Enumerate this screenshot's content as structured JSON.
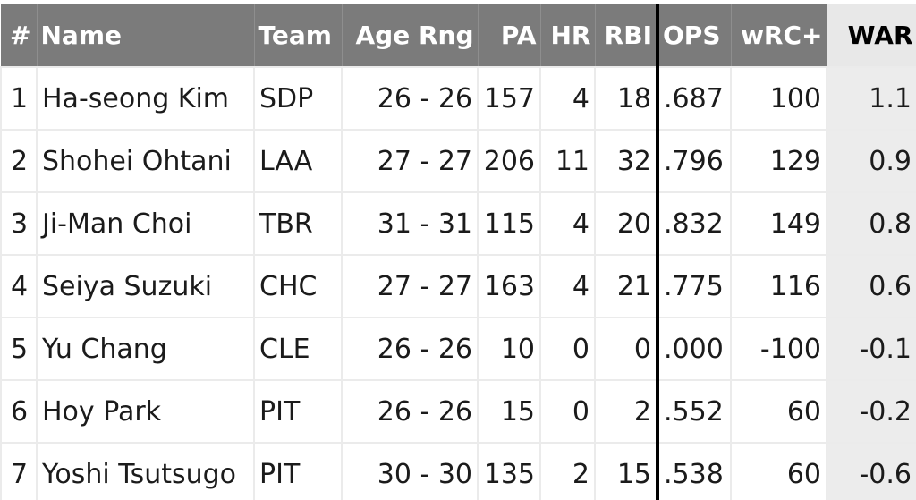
{
  "headers": {
    "num": "#",
    "name": "Name",
    "team": "Team",
    "age": "Age Rng",
    "pa": "PA",
    "hr": "HR",
    "rbi": "RBI",
    "ops": "OPS",
    "wrc": "wRC+",
    "war": "WAR"
  },
  "rows": [
    {
      "num": "1",
      "name": "Ha-seong Kim",
      "team": "SDP",
      "age": "26 - 26",
      "pa": "157",
      "hr": "4",
      "rbi": "18",
      "ops": ".687",
      "wrc": "100",
      "war": "1.1"
    },
    {
      "num": "2",
      "name": "Shohei Ohtani",
      "team": "LAA",
      "age": "27 - 27",
      "pa": "206",
      "hr": "11",
      "rbi": "32",
      "ops": ".796",
      "wrc": "129",
      "war": "0.9"
    },
    {
      "num": "3",
      "name": "Ji-Man Choi",
      "team": "TBR",
      "age": "31 - 31",
      "pa": "115",
      "hr": "4",
      "rbi": "20",
      "ops": ".832",
      "wrc": "149",
      "war": "0.8"
    },
    {
      "num": "4",
      "name": "Seiya Suzuki",
      "team": "CHC",
      "age": "27 - 27",
      "pa": "163",
      "hr": "4",
      "rbi": "21",
      "ops": ".775",
      "wrc": "116",
      "war": "0.6"
    },
    {
      "num": "5",
      "name": "Yu Chang",
      "team": "CLE",
      "age": "26 - 26",
      "pa": "10",
      "hr": "0",
      "rbi": "0",
      "ops": ".000",
      "wrc": "-100",
      "war": "-0.1"
    },
    {
      "num": "6",
      "name": "Hoy Park",
      "team": "PIT",
      "age": "26 - 26",
      "pa": "15",
      "hr": "0",
      "rbi": "2",
      "ops": ".552",
      "wrc": "60",
      "war": "-0.2"
    },
    {
      "num": "7",
      "name": "Yoshi Tsutsugo",
      "team": "PIT",
      "age": "30 - 30",
      "pa": "135",
      "hr": "2",
      "rbi": "15",
      "ops": ".538",
      "wrc": "60",
      "war": "-0.6"
    }
  ]
}
